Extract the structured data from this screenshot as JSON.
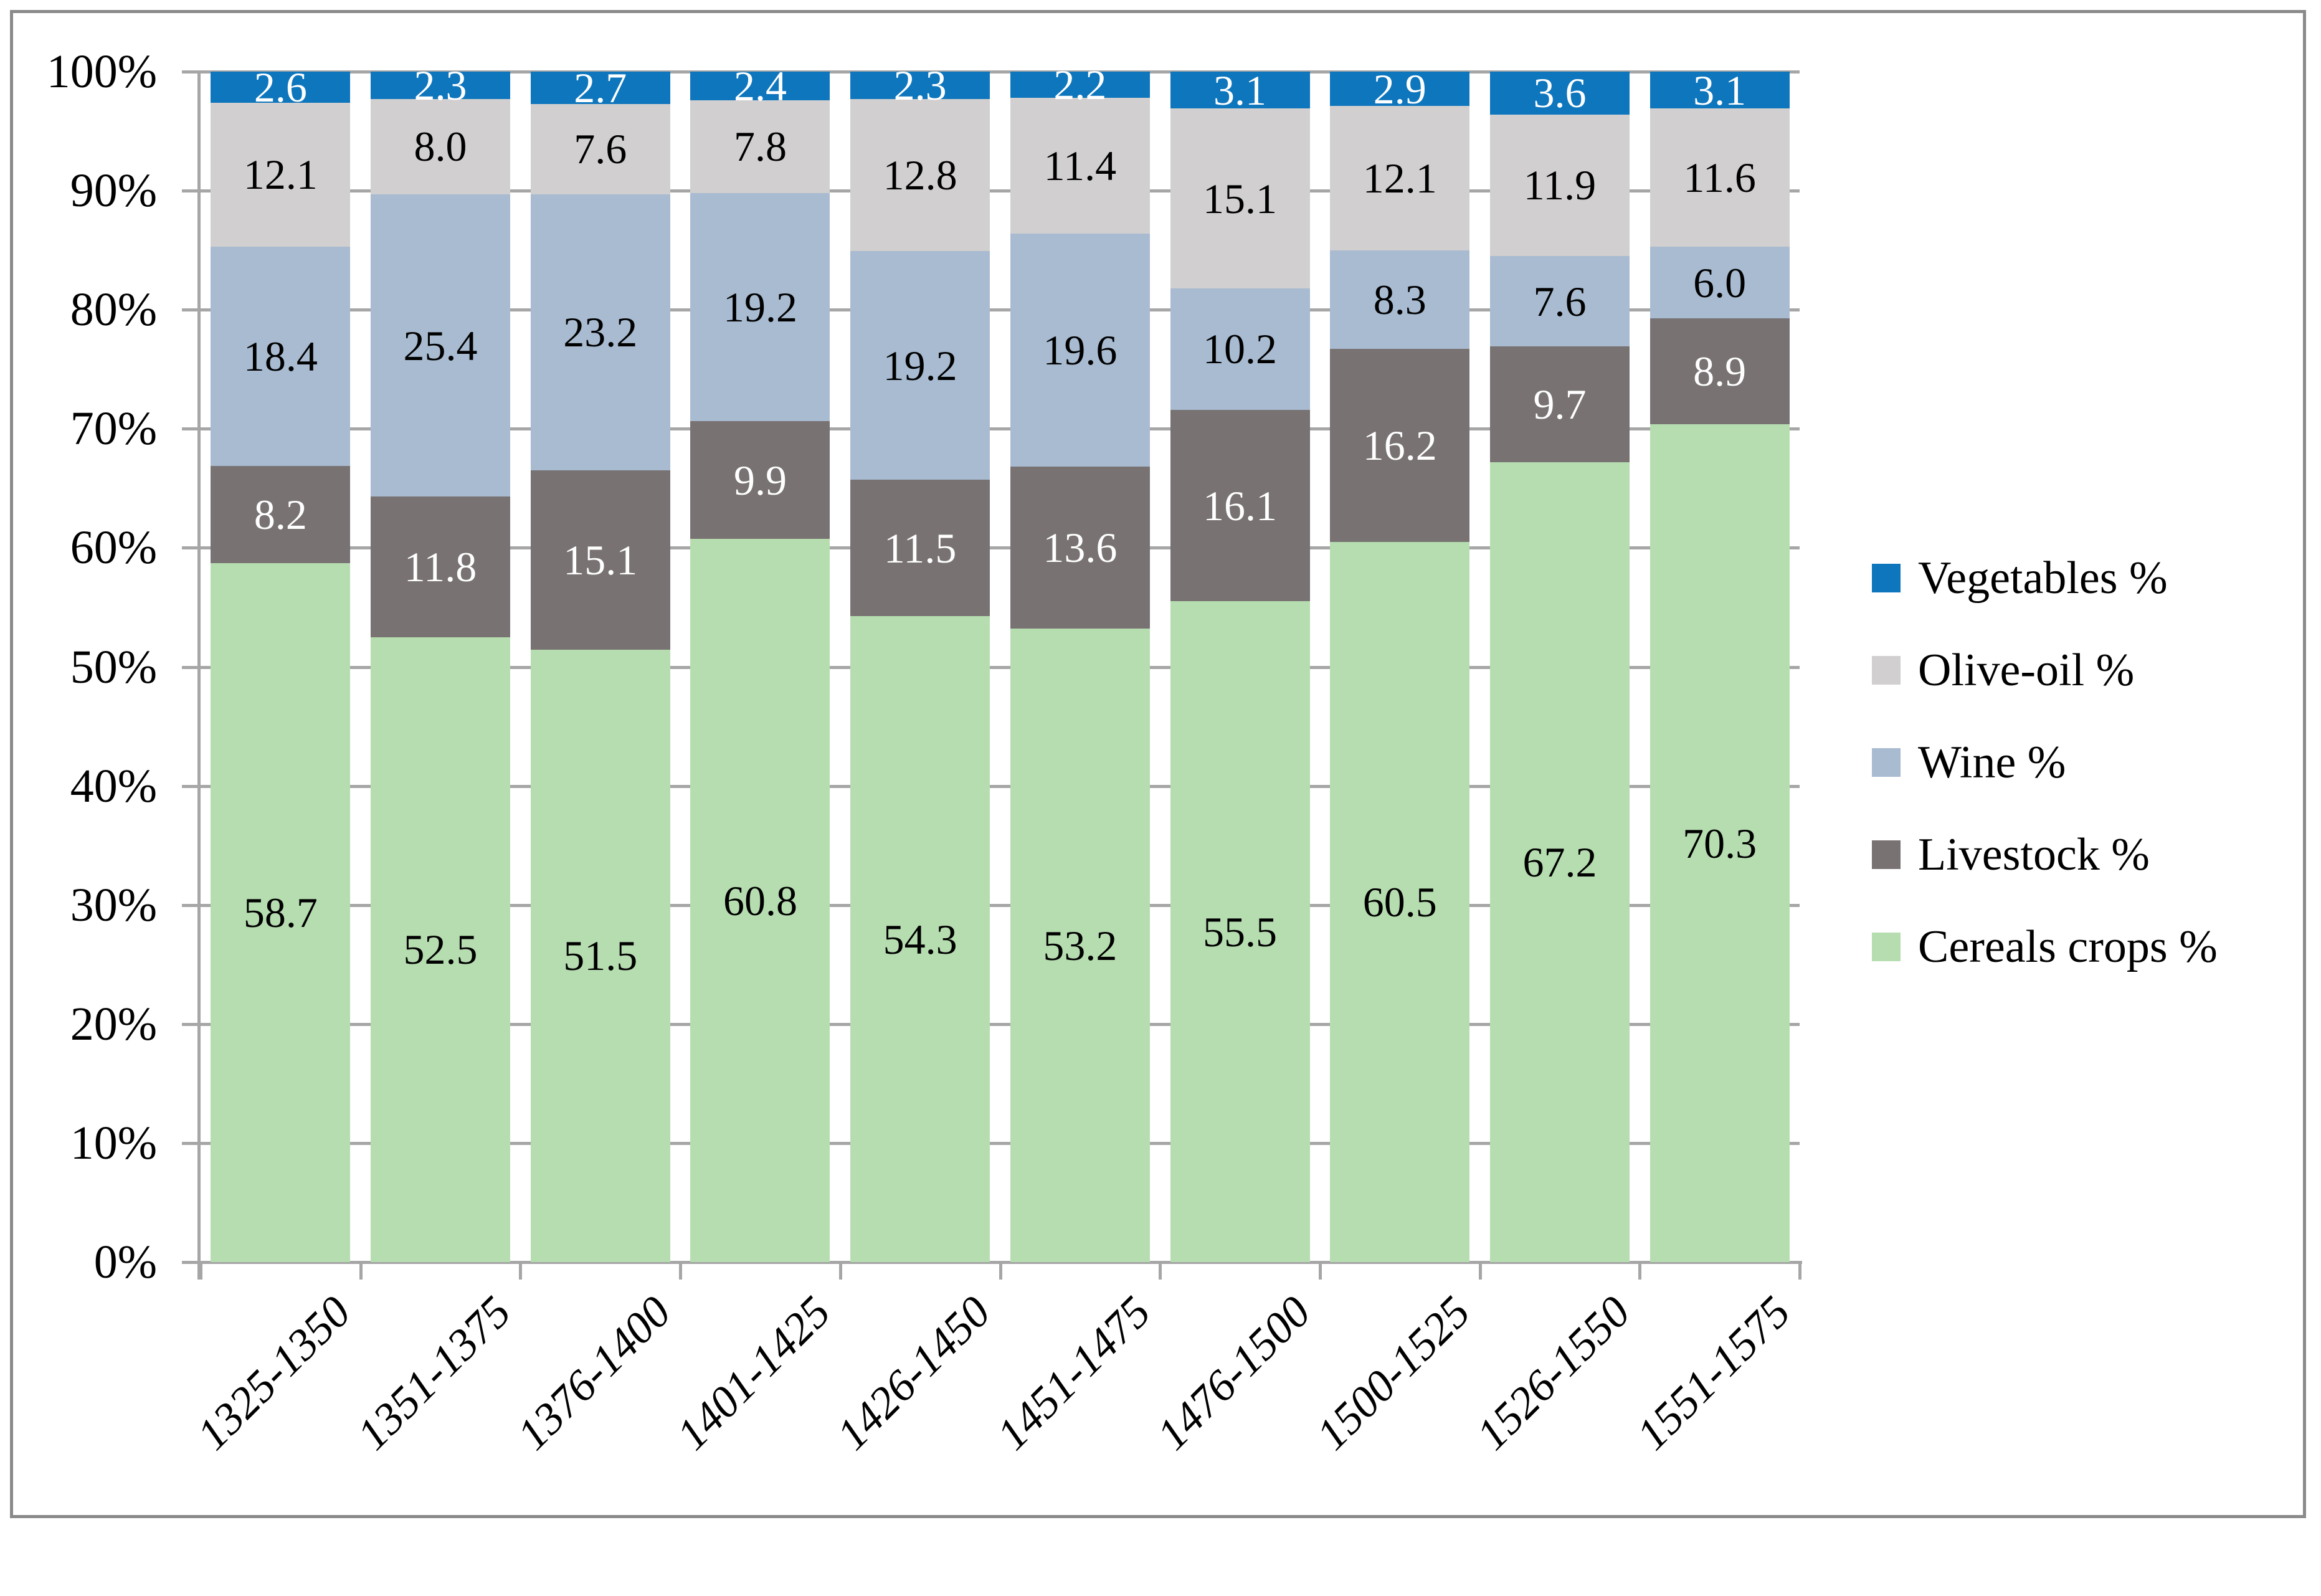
{
  "figure": {
    "background": "#ffffff",
    "border_color": "#8a8a8a",
    "gridline_color": "#a6a6a6"
  },
  "chart_data": {
    "type": "bar",
    "subtype": "stacked-100-percent",
    "title": "",
    "xlabel": "",
    "ylabel": "",
    "grid": true,
    "legend_position": "right",
    "categories": [
      "1325-1350",
      "1351-1375",
      "1376-1400",
      "1401-1425",
      "1426-1450",
      "1451-1475",
      "1476-1500",
      "1500-1525",
      "1526-1550",
      "1551-1575"
    ],
    "series": [
      {
        "name": "Cereals crops %",
        "color": "#b6ddb0",
        "label_color": "#000000",
        "values": [
          58.7,
          52.5,
          51.5,
          60.8,
          54.3,
          53.2,
          55.5,
          60.5,
          67.2,
          70.3
        ]
      },
      {
        "name": "Livestock %",
        "color": "#787272",
        "label_color": "#ffffff",
        "values": [
          8.2,
          11.8,
          15.1,
          9.9,
          11.5,
          13.6,
          16.1,
          16.2,
          9.7,
          8.9
        ]
      },
      {
        "name": "Wine %",
        "color": "#a8bbd1",
        "label_color": "#000000",
        "values": [
          18.4,
          25.4,
          23.2,
          19.2,
          19.2,
          19.6,
          10.2,
          8.3,
          7.6,
          6.0
        ]
      },
      {
        "name": "Olive-oil %",
        "color": "#d1cfcf",
        "label_color": "#000000",
        "values": [
          12.1,
          8.0,
          7.6,
          7.8,
          12.8,
          11.4,
          15.1,
          12.1,
          11.9,
          11.6
        ]
      },
      {
        "name": "Vegetables %",
        "color": "#0e76bd",
        "label_color": "#ffffff",
        "values": [
          2.6,
          2.3,
          2.7,
          2.4,
          2.3,
          2.2,
          3.1,
          2.9,
          3.6,
          3.1
        ]
      }
    ],
    "y_axis": {
      "min": 0,
      "max": 100,
      "step": 10,
      "tick_labels": [
        "0%",
        "10%",
        "20%",
        "30%",
        "40%",
        "50%",
        "60%",
        "70%",
        "80%",
        "90%",
        "100%"
      ]
    },
    "legend": [
      "Vegetables %",
      "Olive-oil %",
      "Wine %",
      "Livestock %",
      "Cereals crops %"
    ]
  }
}
